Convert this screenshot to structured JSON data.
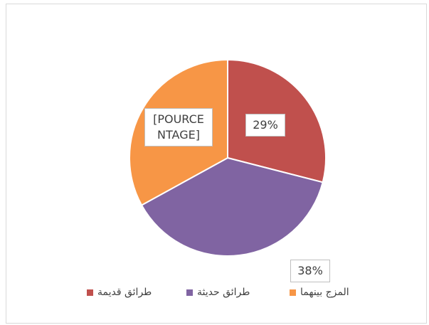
{
  "chart_data": {
    "type": "pie",
    "categories": [
      "طرائق قديمة",
      "طرائق حديثة",
      "المزج بينهما"
    ],
    "values": [
      29,
      38,
      33
    ],
    "value_labels": [
      "29%",
      "38%",
      "[POURCENTAGE]"
    ],
    "colors": [
      "#c0504d",
      "#8064a2",
      "#f79646"
    ]
  }
}
